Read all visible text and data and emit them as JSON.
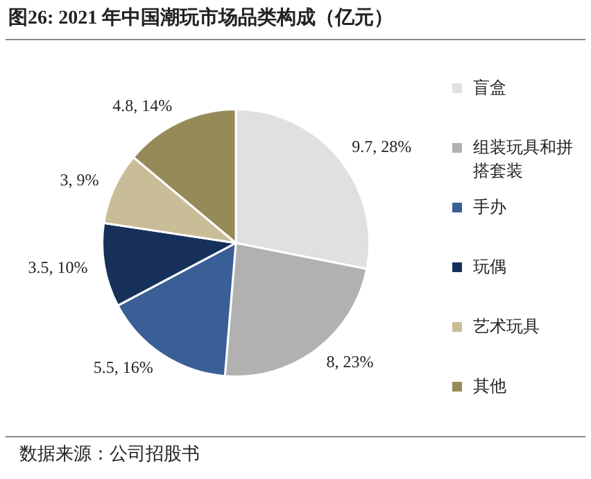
{
  "chart_data": {
    "type": "pie",
    "title": "图26:  2021 年中国潮玩市场品类构成（亿元）",
    "categories": [
      "盲盒",
      "组装玩具和拼搭套装",
      "手办",
      "玩偶",
      "艺术玩具",
      "其他"
    ],
    "values": [
      9.7,
      8,
      5.5,
      3.5,
      3,
      4.8
    ],
    "colors": [
      "#e0e0e0",
      "#b1b1b1",
      "#3a5f96",
      "#16305a",
      "#c9bd98",
      "#968b58"
    ],
    "value_labels": [
      "9.7, 28%",
      "8, 23%",
      "5.5, 16%",
      "3.5, 10%",
      "3, 9%",
      "4.8, 14%"
    ],
    "legend": "right",
    "annotations": [
      "数据来源：公司招股书"
    ]
  }
}
